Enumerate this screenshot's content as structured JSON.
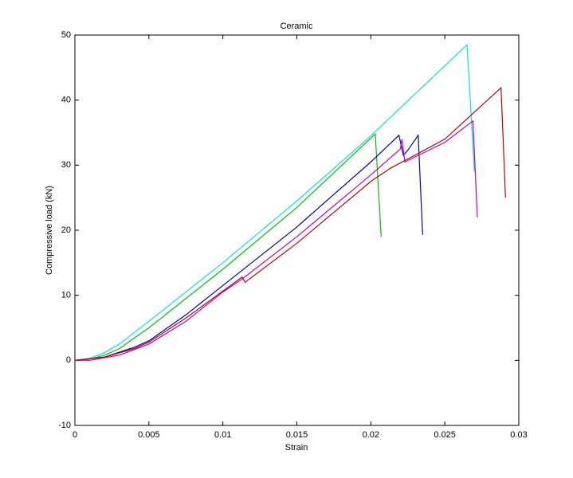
{
  "chart_data": {
    "type": "line",
    "title": "Ceramic",
    "x_label": "Strain",
    "y_label": "Compressive load (kN)",
    "xlim": [
      0,
      0.03
    ],
    "ylim": [
      -10,
      50
    ],
    "xticks": [
      0,
      0.005,
      0.01,
      0.015,
      0.02,
      0.025,
      0.03
    ],
    "yticks": [
      -10,
      0,
      10,
      20,
      30,
      40,
      50
    ],
    "grid": false,
    "series": [
      {
        "color": "#00e5e5",
        "x": [
          0,
          0.001,
          0.002,
          0.003,
          0.005,
          0.0075,
          0.01,
          0.015,
          0.02,
          0.0265,
          0.027
        ],
        "values": [
          0,
          0.3,
          1.2,
          2.5,
          6,
          10.5,
          15,
          24.5,
          34.5,
          48.5,
          29
        ]
      },
      {
        "color": "#00c000",
        "x": [
          0,
          0.001,
          0.002,
          0.003,
          0.005,
          0.0075,
          0.01,
          0.015,
          0.0203,
          0.0207
        ],
        "values": [
          0,
          0.2,
          0.8,
          1.8,
          5,
          9.5,
          14,
          23.5,
          34.8,
          19
        ]
      },
      {
        "color": "#0000c0",
        "x": [
          0,
          0.002,
          0.004,
          0.005,
          0.0075,
          0.01,
          0.015,
          0.02,
          0.0219,
          0.0222,
          0.0225,
          0.0232,
          0.0235
        ],
        "values": [
          0,
          0.5,
          2,
          3,
          7,
          11.5,
          20.5,
          30.5,
          34.6,
          31.5,
          32.3,
          34.6,
          19.3
        ]
      },
      {
        "color": "#c000c0",
        "x": [
          0,
          0.001,
          0.003,
          0.005,
          0.0075,
          0.01,
          0.0113,
          0.015,
          0.02,
          0.022,
          0.0221,
          0.0223,
          0.025,
          0.0269,
          0.0272
        ],
        "values": [
          0,
          0,
          0.8,
          2.5,
          6,
          10.5,
          12.5,
          19,
          28.5,
          32.5,
          34,
          30.5,
          33.5,
          36.8,
          22
        ]
      },
      {
        "color": "#c00000",
        "x": [
          0,
          0.002,
          0.004,
          0.005,
          0.0075,
          0.0113,
          0.0115,
          0.015,
          0.02,
          0.0213,
          0.025,
          0.0288,
          0.0291
        ],
        "values": [
          0,
          0.5,
          1.8,
          2.8,
          6.5,
          12.8,
          12,
          18,
          27.5,
          29.5,
          34,
          41.9,
          25
        ]
      }
    ]
  }
}
